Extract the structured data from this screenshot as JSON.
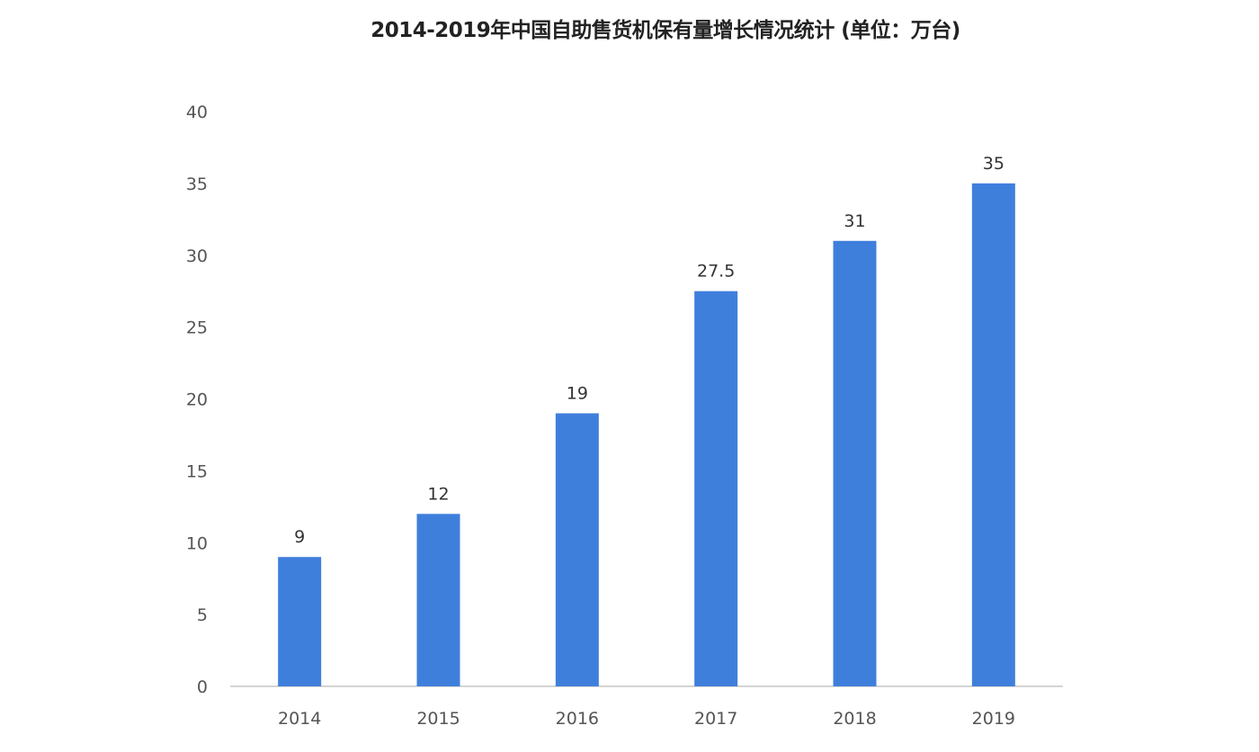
{
  "chart_data": {
    "type": "bar",
    "title": "2014-2019年中国自助售货机保有量增长情况统计 (单位：万台)",
    "categories": [
      "2014",
      "2015",
      "2016",
      "2017",
      "2018",
      "2019"
    ],
    "values": [
      9,
      12,
      19,
      27.5,
      31,
      35
    ],
    "data_labels": [
      "9",
      "12",
      "19",
      "27.5",
      "31",
      "35"
    ],
    "ylim": [
      0,
      40
    ],
    "yticks": [
      0,
      5,
      10,
      15,
      20,
      25,
      30,
      35,
      40
    ],
    "xlabel": "",
    "ylabel": "",
    "grid": false,
    "bar_color": "#3f7fdc"
  }
}
